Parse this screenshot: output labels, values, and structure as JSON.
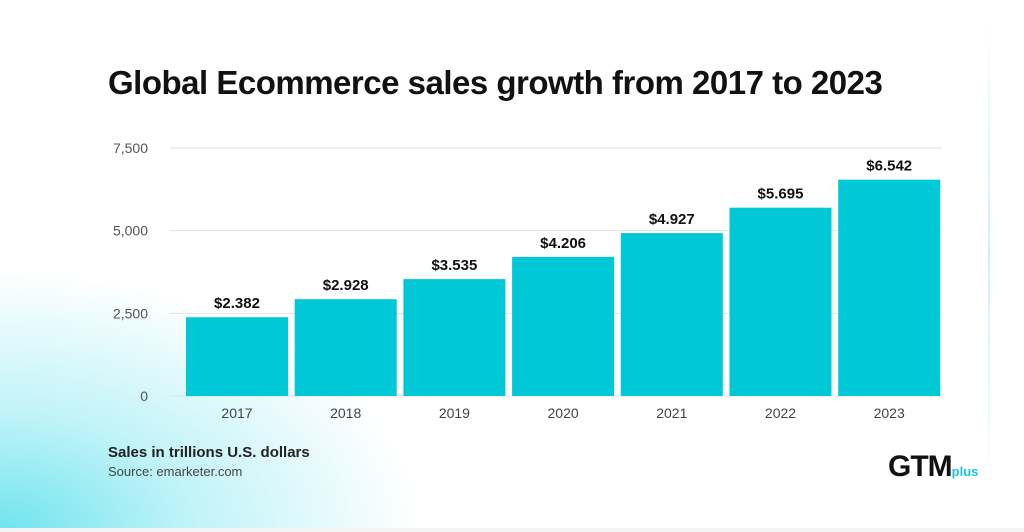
{
  "chart_data": {
    "type": "bar",
    "title": "Global Ecommerce sales growth from 2017 to 2023",
    "categories": [
      "2017",
      "2018",
      "2019",
      "2020",
      "2021",
      "2022",
      "2023"
    ],
    "values": [
      2.382,
      2.928,
      3.535,
      4.206,
      4.927,
      5.695,
      6.542
    ],
    "data_labels": [
      "$2.382",
      "$2.928",
      "$3.535",
      "$4.206",
      "$4.927",
      "$5.695",
      "$6.542"
    ],
    "y_ticks": [
      "0",
      "2,500",
      "5,000",
      "7,500"
    ],
    "y_tick_values": [
      0,
      2500,
      5000,
      7500
    ],
    "ylim": [
      0,
      7500
    ],
    "value_scale_on_axis": 1000,
    "grid": true,
    "bar_color": "#00c8d7",
    "note": "Sales in trillions U.S. dollars",
    "source": "Source: emarketer.com"
  },
  "logo": {
    "main": "GTM",
    "sub": "plus",
    "accent": "#1cc6d8"
  }
}
